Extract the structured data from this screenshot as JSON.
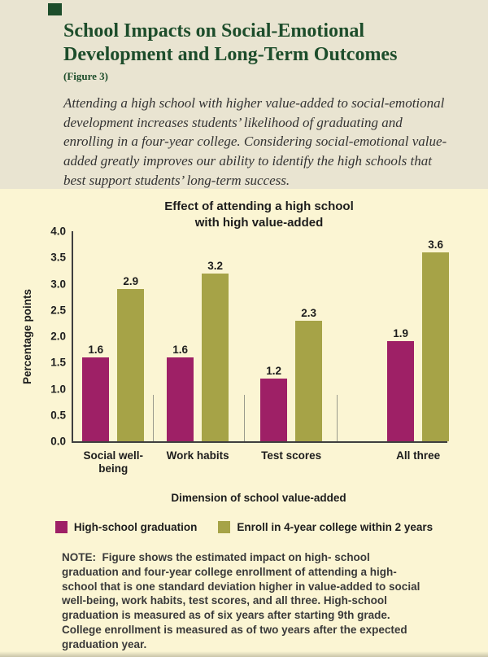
{
  "header": {
    "title": "School Impacts on Social-Emotional Development and Long-Term Outcomes",
    "figure_label": "(Figure 3)",
    "subtitle": "Attending a high school with higher value-added to social-emotional development increases students’ likelihood of graduating and enrolling in a four-year college. Considering social-emotional value-added greatly improves our ability to identify the high schools that best support students’ long-term success."
  },
  "chart_data": {
    "type": "bar",
    "title": "Effect of attending a high school with high value-added",
    "categories": [
      "Social well-being",
      "Work habits",
      "Test scores",
      "All three"
    ],
    "series": [
      {
        "name": "High-school graduation",
        "color": "#9e2066",
        "values": [
          1.6,
          1.6,
          1.2,
          1.9
        ]
      },
      {
        "name": "Enroll in 4-year college within 2 years",
        "color": "#a6a347",
        "values": [
          2.9,
          3.2,
          2.3,
          3.6
        ]
      }
    ],
    "xlabel": "Dimension of school value-added",
    "ylabel": "Percentage points",
    "ylim": [
      0,
      4.0
    ],
    "ytick_step": 0.5,
    "grid": false,
    "legend_position": "bottom",
    "value_label_decimals": 1
  },
  "note": {
    "label": "NOTE:",
    "text": "Figure shows the estimated impact on high- school graduation and four-year college enrollment of attending a high-school that is one standard deviation higher in value-added to social well-being, work habits, test scores, and all three. High-school graduation is measured as of six years after starting 9th grade. College enrollment is measured as of two years after the expected graduation year."
  },
  "colors": {
    "header_background": "#e9e4d1",
    "chart_background": "#fbf5d3",
    "title_green": "#1d4d2b",
    "axis": "#3f3f3f",
    "separator": "#9a9a8c"
  }
}
